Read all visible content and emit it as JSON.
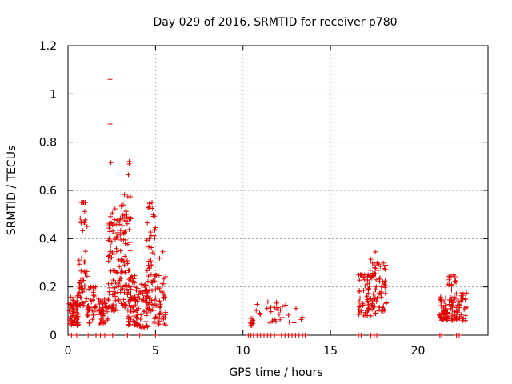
{
  "chart_data": {
    "type": "scatter",
    "title": "Day 029 of 2016, SRMTID for receiver p780",
    "xlabel": "GPS time / hours",
    "ylabel": "SRMTID / TECUs",
    "xlim": [
      0,
      24
    ],
    "ylim": [
      0,
      1.2
    ],
    "xticks": [
      0,
      5,
      10,
      15,
      20
    ],
    "yticks": [
      0,
      0.2,
      0.4,
      0.6,
      0.8,
      1,
      1.2
    ],
    "xtick_labels": [
      "0",
      "5",
      "10",
      "15",
      "20"
    ],
    "ytick_labels": [
      "0",
      "0.2",
      "0.4",
      "0.6",
      "0.8",
      "1",
      "1.2"
    ],
    "grid": true,
    "marker": "+",
    "color": "#e00000",
    "clusters": [
      {
        "x0": 0.05,
        "x1": 0.6,
        "lo": 0.04,
        "hi": 0.14,
        "n": 70,
        "tail": 0.17
      },
      {
        "x0": 0.6,
        "x1": 1.1,
        "lo": 0.12,
        "hi": 0.55,
        "n": 60,
        "tail": 0.55
      },
      {
        "x0": 1.1,
        "x1": 1.6,
        "lo": 0.05,
        "hi": 0.2,
        "n": 40,
        "tail": 0.2
      },
      {
        "x0": 1.7,
        "x1": 2.3,
        "lo": 0.04,
        "hi": 0.14,
        "n": 45,
        "tail": 0.15
      },
      {
        "x0": 2.3,
        "x1": 3.0,
        "lo": 0.1,
        "hi": 0.45,
        "n": 90,
        "tail": 0.53
      },
      {
        "x0": 3.0,
        "x1": 3.6,
        "lo": 0.1,
        "hi": 0.5,
        "n": 80,
        "tail": 0.6
      },
      {
        "x0": 3.4,
        "x1": 4.1,
        "lo": 0.04,
        "hi": 0.2,
        "n": 70,
        "tail": 0.25
      },
      {
        "x0": 4.1,
        "x1": 4.6,
        "lo": 0.03,
        "hi": 0.2,
        "n": 50,
        "tail": 0.22
      },
      {
        "x0": 4.5,
        "x1": 5.0,
        "lo": 0.1,
        "hi": 0.45,
        "n": 55,
        "tail": 0.55
      },
      {
        "x0": 4.9,
        "x1": 5.6,
        "lo": 0.04,
        "hi": 0.25,
        "n": 50,
        "tail": 0.38
      },
      {
        "x0": 10.4,
        "x1": 10.6,
        "lo": 0.04,
        "hi": 0.07,
        "n": 10,
        "tail": 0.07
      },
      {
        "x0": 10.7,
        "x1": 13.6,
        "lo": 0.05,
        "hi": 0.12,
        "n": 30,
        "tail": 0.14
      },
      {
        "x0": 16.6,
        "x1": 17.2,
        "lo": 0.08,
        "hi": 0.25,
        "n": 45,
        "tail": 0.25
      },
      {
        "x0": 17.1,
        "x1": 17.6,
        "lo": 0.08,
        "hi": 0.3,
        "n": 45,
        "tail": 0.35
      },
      {
        "x0": 17.6,
        "x1": 18.2,
        "lo": 0.1,
        "hi": 0.28,
        "n": 40,
        "tail": 0.3
      },
      {
        "x0": 21.2,
        "x1": 21.7,
        "lo": 0.06,
        "hi": 0.14,
        "n": 45,
        "tail": 0.16
      },
      {
        "x0": 21.7,
        "x1": 22.2,
        "lo": 0.06,
        "hi": 0.24,
        "n": 45,
        "tail": 0.25
      },
      {
        "x0": 22.2,
        "x1": 22.8,
        "lo": 0.06,
        "hi": 0.17,
        "n": 40,
        "tail": 0.18
      }
    ],
    "outliers": [
      {
        "x": 2.4,
        "y": 1.06
      },
      {
        "x": 2.4,
        "y": 0.875
      },
      {
        "x": 2.45,
        "y": 0.715
      },
      {
        "x": 3.5,
        "y": 0.72
      },
      {
        "x": 3.5,
        "y": 0.71
      },
      {
        "x": 3.45,
        "y": 0.665
      },
      {
        "x": 1.0,
        "y": 0.55
      },
      {
        "x": 4.8,
        "y": 0.55
      }
    ],
    "zero_points": [
      0.2,
      0.5,
      1.15,
      1.6,
      1.85,
      2.1,
      2.4,
      2.55,
      3.4,
      4.1,
      5.0,
      10.3,
      10.45,
      10.6,
      10.8,
      11.0,
      11.2,
      11.4,
      11.6,
      11.8,
      12.0,
      12.2,
      12.4,
      12.6,
      12.8,
      13.0,
      13.2,
      13.4,
      13.55,
      16.6,
      16.75,
      17.3,
      17.5,
      17.65,
      21.25,
      21.35,
      22.2,
      22.35
    ]
  }
}
